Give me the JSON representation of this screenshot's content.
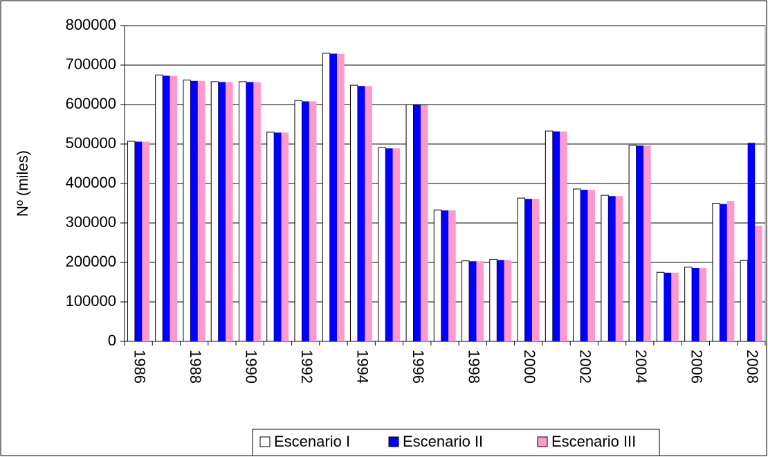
{
  "chart_data": {
    "type": "bar",
    "y_label": "Nº (miles)",
    "categories": [
      "1986",
      null,
      "1988",
      null,
      "1990",
      null,
      "1992",
      null,
      "1994",
      null,
      "1996",
      null,
      "1998",
      null,
      "2000",
      null,
      "2002",
      null,
      "2004",
      null,
      "2006",
      null,
      "2008"
    ],
    "series": [
      {
        "name": "Escenario I",
        "color": "#ffffff",
        "values": [
          507000,
          675000,
          662000,
          658000,
          658000,
          530000,
          610000,
          730000,
          649000,
          491000,
          600000,
          333000,
          204000,
          208000,
          363000,
          533000,
          386000,
          370000,
          497000,
          175000,
          188000,
          350000,
          205000
        ]
      },
      {
        "name": "Escenario II",
        "color": "#0000ff",
        "values": [
          506000,
          673000,
          660000,
          657000,
          657000,
          529000,
          608000,
          729000,
          647000,
          489000,
          599000,
          332000,
          203000,
          206000,
          361000,
          532000,
          384000,
          368000,
          496000,
          174000,
          186000,
          348000,
          503000
        ]
      },
      {
        "name": "Escenario III",
        "color": "#ff99cc",
        "values": [
          506000,
          673000,
          660000,
          657000,
          657000,
          529000,
          608000,
          729000,
          647000,
          489000,
          599000,
          332000,
          203000,
          206000,
          361000,
          532000,
          384000,
          368000,
          496000,
          174000,
          186000,
          356000,
          293000
        ]
      }
    ],
    "ylim": [
      0,
      800000
    ],
    "yticks": [
      0,
      100000,
      200000,
      300000,
      400000,
      500000,
      600000,
      700000,
      800000
    ],
    "grid": true,
    "legend": "bottom"
  }
}
